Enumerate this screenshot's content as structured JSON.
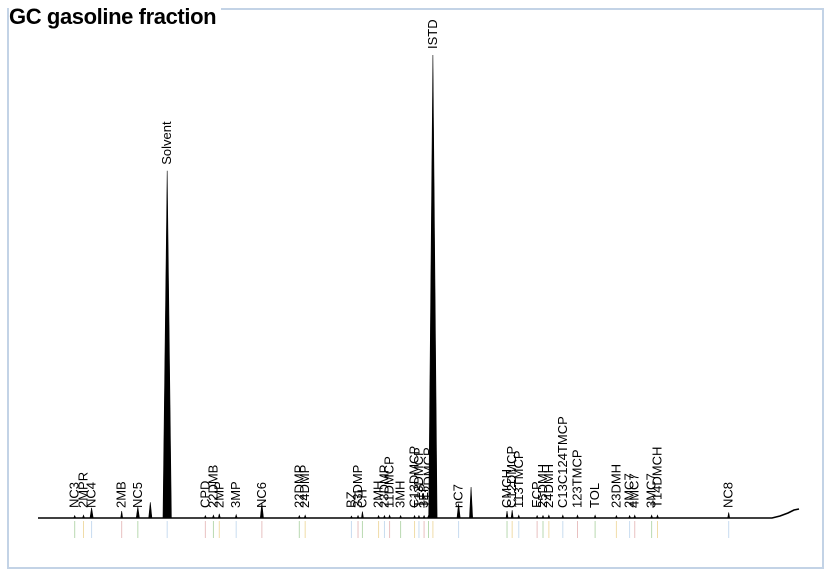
{
  "title": "GC gasoline fraction",
  "colors": {
    "trace": "#000000",
    "frame": "#c3d3e6",
    "ticks": [
      "#b9d9b0",
      "#f0dca8",
      "#c8dcf0",
      "#e8c0c0"
    ]
  },
  "chart_data": {
    "type": "line",
    "xlabel": "",
    "ylabel": "",
    "axes_visible": false,
    "grid": false,
    "xlim": [
      0,
      100
    ],
    "ylim": [
      0,
      100
    ],
    "peaks": [
      {
        "name": "NC3",
        "rt": 5.0,
        "h": 0.5
      },
      {
        "name": "2MPR",
        "rt": 6.2,
        "h": 0.6
      },
      {
        "name": "NC4",
        "rt": 7.3,
        "h": 2.2
      },
      {
        "name": "2MB",
        "rt": 11.4,
        "h": 1.5
      },
      {
        "name": "NC5",
        "rt": 13.6,
        "h": 2.4
      },
      {
        "name": "",
        "rt": 15.3,
        "h": 3.4
      },
      {
        "name": "Solvent",
        "rt": 17.6,
        "h": 75.0
      },
      {
        "name": "CPD",
        "rt": 22.8,
        "h": 0.5
      },
      {
        "name": "22DMB",
        "rt": 23.9,
        "h": 0.6
      },
      {
        "name": "2MP",
        "rt": 24.7,
        "h": 0.9
      },
      {
        "name": "3MP",
        "rt": 27.0,
        "h": 0.7
      },
      {
        "name": "NC6",
        "rt": 30.5,
        "h": 3.2
      },
      {
        "name": "22DMP",
        "rt": 35.6,
        "h": 0.5
      },
      {
        "name": "24DMP",
        "rt": 36.4,
        "h": 0.6
      },
      {
        "name": "BZ",
        "rt": 42.7,
        "h": 0.4
      },
      {
        "name": "33DMP",
        "rt": 43.6,
        "h": 0.5
      },
      {
        "name": "CH",
        "rt": 44.2,
        "h": 1.4
      },
      {
        "name": "2MH",
        "rt": 46.4,
        "h": 0.5
      },
      {
        "name": "23DMP",
        "rt": 47.2,
        "h": 0.5
      },
      {
        "name": "11DMCP",
        "rt": 47.9,
        "h": 0.6
      },
      {
        "name": "3MH",
        "rt": 49.4,
        "h": 0.5
      },
      {
        "name": "C13DMCP",
        "rt": 51.3,
        "h": 0.5
      },
      {
        "name": "T13DMCP",
        "rt": 51.9,
        "h": 0.5
      },
      {
        "name": "3EP",
        "rt": 52.6,
        "h": 0.5
      },
      {
        "name": "T12DMCP",
        "rt": 53.2,
        "h": 0.5
      },
      {
        "name": "ISTD",
        "rt": 53.8,
        "h": 100.0
      },
      {
        "name": "nC7",
        "rt": 57.3,
        "h": 3.1
      },
      {
        "name": "",
        "rt": 59.0,
        "h": 6.7
      },
      {
        "name": "CMCH",
        "rt": 63.9,
        "h": 1.5
      },
      {
        "name": "C12DMCP",
        "rt": 64.6,
        "h": 1.7
      },
      {
        "name": "113TMCP",
        "rt": 65.5,
        "h": 0.6
      },
      {
        "name": "ECP",
        "rt": 68.0,
        "h": 0.5
      },
      {
        "name": "25DMH",
        "rt": 68.8,
        "h": 0.5
      },
      {
        "name": "24DMH",
        "rt": 69.6,
        "h": 0.6
      },
      {
        "name": "C13C124TMCP",
        "rt": 71.5,
        "h": 0.6
      },
      {
        "name": "123TMCP",
        "rt": 73.5,
        "h": 0.6
      },
      {
        "name": "TOL",
        "rt": 75.9,
        "h": 0.6
      },
      {
        "name": "23DMH",
        "rt": 78.8,
        "h": 0.5
      },
      {
        "name": "2MC7",
        "rt": 80.6,
        "h": 0.5
      },
      {
        "name": "4MC7",
        "rt": 81.3,
        "h": 0.6
      },
      {
        "name": "3MC7",
        "rt": 83.6,
        "h": 0.6
      },
      {
        "name": "T14DMCH",
        "rt": 84.4,
        "h": 0.6
      },
      {
        "name": "NC8",
        "rt": 94.1,
        "h": 1.2
      }
    ]
  }
}
